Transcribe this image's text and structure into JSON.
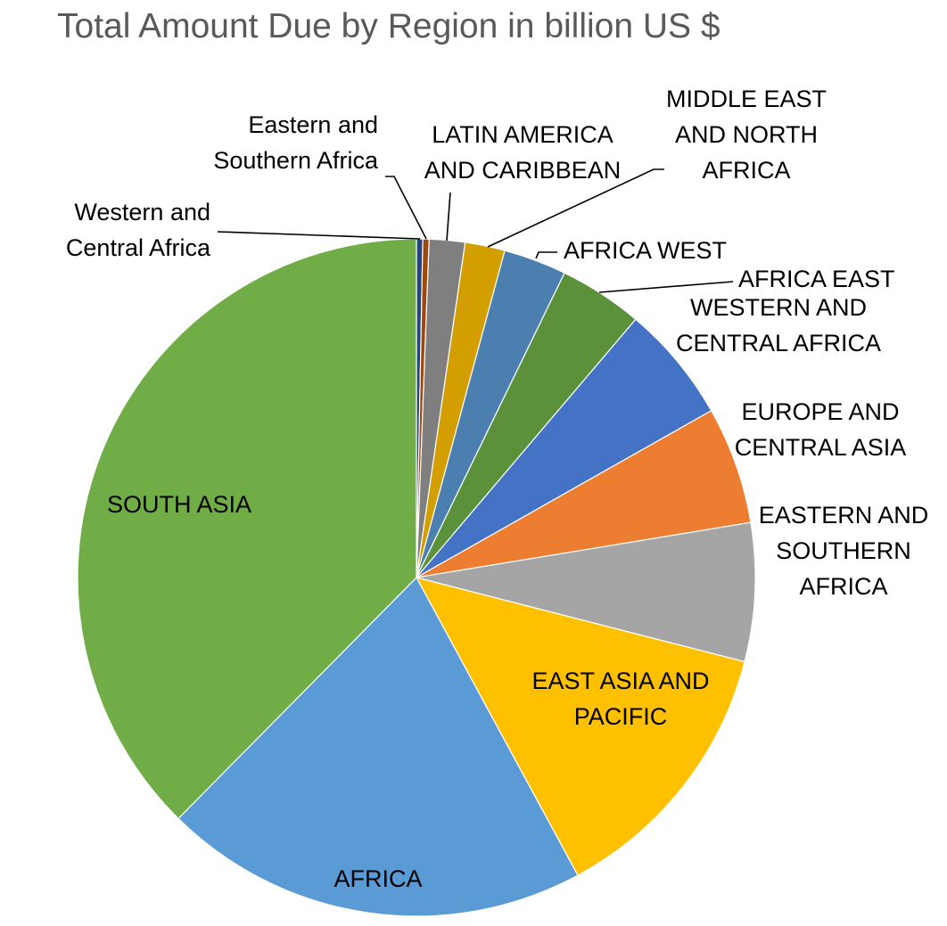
{
  "chart_data": {
    "type": "pie",
    "title": "Total Amount Due by Region in billion US $",
    "start": "12 o'clock",
    "direction": "clockwise",
    "slices": [
      {
        "label": "Western and Central Africa",
        "label_lines": [
          "Western and",
          "Central Africa"
        ],
        "value": 0.3,
        "color": "#264478"
      },
      {
        "label": "Eastern and Southern Africa",
        "label_lines": [
          "Eastern and",
          "Southern Africa"
        ],
        "value": 0.3,
        "color": "#9E480E"
      },
      {
        "label": "LATIN AMERICA AND CARIBBEAN",
        "label_lines": [
          "LATIN AMERICA",
          "AND CARIBBEAN"
        ],
        "value": 1.7,
        "color": "#7F7F7F"
      },
      {
        "label": "MIDDLE EAST AND NORTH AFRICA",
        "label_lines": [
          "MIDDLE EAST",
          "AND NORTH",
          "AFRICA"
        ],
        "value": 1.9,
        "color": "#D29E00"
      },
      {
        "label": "AFRICA WEST",
        "label_lines": [
          "AFRICA WEST"
        ],
        "value": 3.0,
        "color": "#4A7FB0"
      },
      {
        "label": "AFRICA EAST",
        "label_lines": [
          "AFRICA EAST"
        ],
        "value": 4.0,
        "color": "#5A913A"
      },
      {
        "label": "WESTERN AND CENTRAL AFRICA",
        "label_lines": [
          "WESTERN AND",
          "CENTRAL AFRICA"
        ],
        "value": 5.6,
        "color": "#4472C4"
      },
      {
        "label": "EUROPE AND CENTRAL ASIA",
        "label_lines": [
          "EUROPE AND",
          "CENTRAL ASIA"
        ],
        "value": 5.6,
        "color": "#ED7D31"
      },
      {
        "label": "EASTERN AND SOUTHERN AFRICA",
        "label_lines": [
          "EASTERN AND",
          "SOUTHERN",
          "AFRICA"
        ],
        "value": 6.6,
        "color": "#A5A5A5"
      },
      {
        "label": "EAST ASIA AND PACIFIC",
        "label_lines": [
          "EAST ASIA AND",
          "PACIFIC"
        ],
        "value": 13.1,
        "color": "#FFC000"
      },
      {
        "label": "AFRICA",
        "label_lines": [
          "AFRICA"
        ],
        "value": 20.3,
        "color": "#5B9BD5"
      },
      {
        "label": "SOUTH ASIA",
        "label_lines": [
          "SOUTH ASIA"
        ],
        "value": 37.6,
        "color": "#70AD47"
      }
    ]
  }
}
